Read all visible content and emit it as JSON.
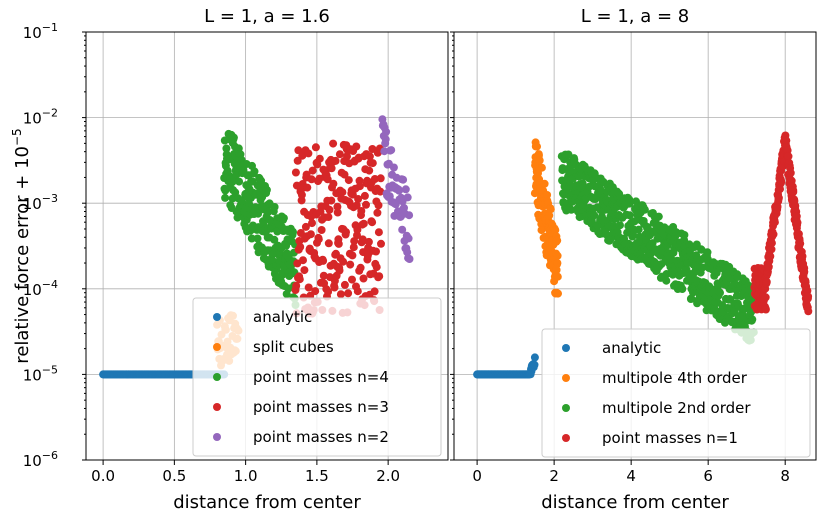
{
  "chart_data": [
    {
      "type": "scatter",
      "title": "L = 1, a = 1.6",
      "xlabel": "distance from center",
      "ylabel": "relative force error + 10$^{-5}$",
      "ylabel_main": "relative force error + 10",
      "ylabel_sup": "−5",
      "xlim": [
        -0.12,
        2.42
      ],
      "ylim_log10": [
        -6,
        -1
      ],
      "yscale": "log",
      "grid": true,
      "legend_position": "lower right",
      "xticks": [
        {
          "value": 0.0,
          "label": "0.0"
        },
        {
          "value": 0.5,
          "label": "0.5"
        },
        {
          "value": 1.0,
          "label": "1.0"
        },
        {
          "value": 1.5,
          "label": "1.5"
        },
        {
          "value": 2.0,
          "label": "2.0"
        }
      ],
      "yticks": [
        {
          "exp": -6,
          "base": "10",
          "sup": "−6"
        },
        {
          "exp": -5,
          "base": "10",
          "sup": "−5"
        },
        {
          "exp": -4,
          "base": "10",
          "sup": "−4"
        },
        {
          "exp": -3,
          "base": "10",
          "sup": "−3"
        },
        {
          "exp": -2,
          "base": "10",
          "sup": "−2"
        },
        {
          "exp": -1,
          "base": "10",
          "sup": "−1"
        }
      ],
      "series": [
        {
          "name": "analytic",
          "color": "#1f77b4",
          "x_range": [
            0.0,
            0.85
          ],
          "logy_center": -5.0,
          "logy_spread": 0.0,
          "count": 150
        },
        {
          "name": "split cubes",
          "color": "#ff7f0e",
          "x_range": [
            0.8,
            0.95
          ],
          "logy_center": -4.6,
          "logy_spread": 0.3,
          "count": 40
        },
        {
          "name": "point masses n=4",
          "color": "#2ca02c",
          "x_range": [
            0.85,
            1.35
          ],
          "logy_start": -2.5,
          "logy_end": -3.8,
          "logy_spread": 0.45,
          "count": 260
        },
        {
          "name": "point masses n=3",
          "color": "#d62728",
          "x_range": [
            1.35,
            1.95
          ],
          "logy_center": -3.3,
          "logy_spread": 1.0,
          "count": 240
        },
        {
          "name": "point masses n=2",
          "color": "#9467bd",
          "x_range": [
            1.96,
            2.15
          ],
          "logy_start": -2.35,
          "logy_end": -3.3,
          "logy_spread": 0.4,
          "count": 60
        }
      ]
    },
    {
      "type": "scatter",
      "title": "L = 1, a = 8",
      "xlabel": "distance from center",
      "xlim": [
        -0.6,
        8.8
      ],
      "ylim_log10": [
        -6,
        -1
      ],
      "yscale": "log",
      "grid": true,
      "legend_position": "lower right",
      "xticks": [
        {
          "value": 0,
          "label": "0"
        },
        {
          "value": 2,
          "label": "2"
        },
        {
          "value": 4,
          "label": "4"
        },
        {
          "value": 6,
          "label": "6"
        },
        {
          "value": 8,
          "label": "8"
        }
      ],
      "series": [
        {
          "name": "analytic",
          "color": "#1f77b4",
          "x_range": [
            0.0,
            1.5
          ],
          "logy_center": -5.0,
          "logy_spread": 0.0,
          "count": 150
        },
        {
          "name": "multipole 4th order",
          "color": "#ff7f0e",
          "x_range": [
            1.5,
            2.1
          ],
          "logy_start": -2.6,
          "logy_end": -3.8,
          "logy_spread": 0.4,
          "count": 120
        },
        {
          "name": "multipole 2nd order",
          "color": "#2ca02c",
          "x_range": [
            2.2,
            7.2
          ],
          "logy_start": -2.7,
          "logy_end": -4.3,
          "logy_spread": 0.35,
          "count": 650
        },
        {
          "name": "point masses n=1",
          "color": "#d62728",
          "x_range": [
            7.2,
            8.6
          ],
          "logy_center": -3.0,
          "logy_spread": 0.3,
          "count": 300
        }
      ]
    }
  ]
}
